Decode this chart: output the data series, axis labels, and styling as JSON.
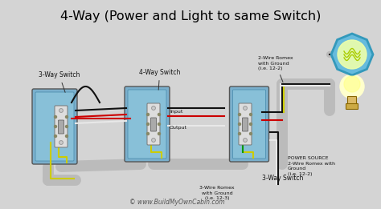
{
  "title": "4-Way (Power and Light to same Switch)",
  "bg_color": "#d4d4d4",
  "title_color": "#000000",
  "title_fontsize": 11.5,
  "watermark": "© www.BuildMyOwnCabin.com",
  "labels": {
    "sw1": "3-Way Switch",
    "sw2": "4-Way Switch",
    "sw3": "3-Way Switch",
    "romex1": "2-Wire Romex\nwith Ground\n(i.e. 12-2)",
    "romex2": "3-Wire Romex\nwith Ground\n(i.e. 12-3)",
    "romex3": "POWER SOURCE\n2-Wire Romex with\nGround\n(i.e. 12-2)",
    "input_label": "Input",
    "output_label": "Output"
  },
  "wire_colors": {
    "black": "#111111",
    "red": "#cc0000",
    "white": "#e8e8e8",
    "ground": "#cccc00",
    "gray": "#999999",
    "green": "#009900"
  },
  "box_color": "#7aafcc",
  "box_edge": "#555555",
  "switch_plate": "#cccccc",
  "switch_dark": "#888888",
  "light_hex": "#66bbdd",
  "light_hex_edge": "#3399bb",
  "light_glow": "#eeffaa",
  "bulb_color": "#ffffcc",
  "bulb_base": "#ddbb66"
}
